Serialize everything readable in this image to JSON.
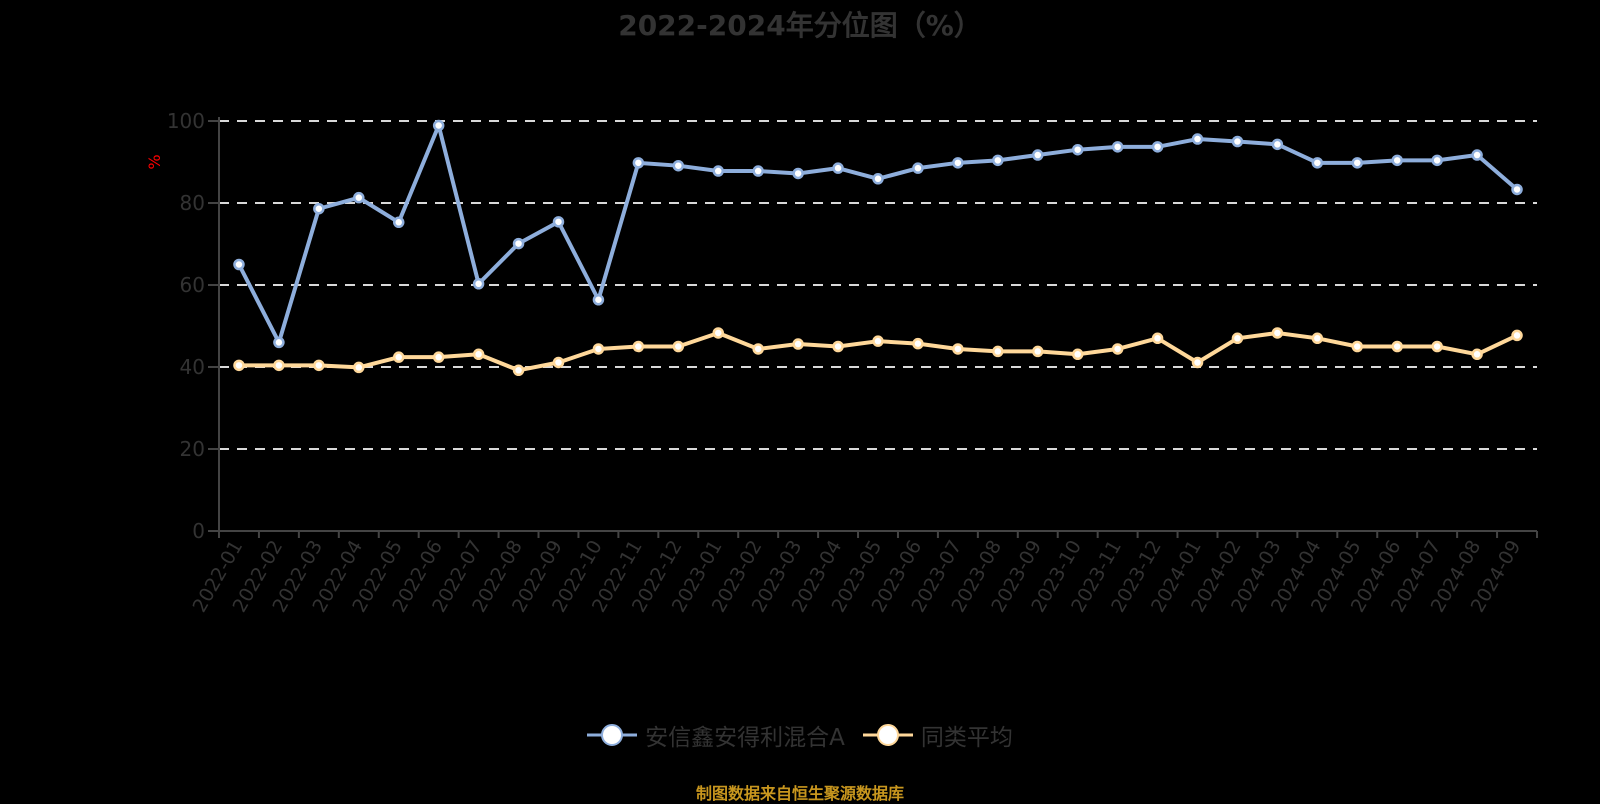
{
  "title": "2022-2024年分位图（%）",
  "footer": "制图数据来自恒生聚源数据库",
  "y_axis_unit": "%",
  "legend": [
    {
      "label": "安信鑫安得利混合A",
      "color": "#8eaedc"
    },
    {
      "label": "同类平均",
      "color": "#ffd89a"
    }
  ],
  "chart_data": {
    "type": "line",
    "title": "2022-2024年分位图（%）",
    "xlabel": "",
    "ylabel": "%",
    "ylim": [
      0,
      100
    ],
    "yticks": [
      0,
      20,
      40,
      60,
      80,
      100
    ],
    "grid": true,
    "legend_position": "bottom",
    "categories": [
      "2022-01",
      "2022-02",
      "2022-03",
      "2022-04",
      "2022-05",
      "2022-06",
      "2022-07",
      "2022-08",
      "2022-09",
      "2022-10",
      "2022-11",
      "2022-12",
      "2023-01",
      "2023-02",
      "2023-03",
      "2023-04",
      "2023-05",
      "2023-06",
      "2023-07",
      "2023-08",
      "2023-09",
      "2023-10",
      "2023-11",
      "2023-12",
      "2024-01",
      "2024-02",
      "2024-03",
      "2024-04",
      "2024-05",
      "2024-06",
      "2024-07",
      "2024-08",
      "2024-09"
    ],
    "series": [
      {
        "name": "安信鑫安得利混合A",
        "color": "#8eaedc",
        "values": [
          65.0,
          46.0,
          78.6,
          81.3,
          75.3,
          98.9,
          60.3,
          70.1,
          75.4,
          56.4,
          89.8,
          89.1,
          87.8,
          87.8,
          87.2,
          88.5,
          85.9,
          88.5,
          89.8,
          90.4,
          91.7,
          93.0,
          93.7,
          93.7,
          95.6,
          95.0,
          94.3,
          89.8,
          89.8,
          90.4,
          90.4,
          91.7,
          83.3
        ]
      },
      {
        "name": "同类平均",
        "color": "#ffd89a",
        "values": [
          40.4,
          40.4,
          40.4,
          39.9,
          42.4,
          42.4,
          43.1,
          39.2,
          41.1,
          44.4,
          45.0,
          45.0,
          48.3,
          44.4,
          45.6,
          45.0,
          46.3,
          45.7,
          44.4,
          43.8,
          43.8,
          43.1,
          44.4,
          47.0,
          41.1,
          47.0,
          48.3,
          47.0,
          45.0,
          45.0,
          45.0,
          43.1,
          47.7
        ]
      }
    ]
  }
}
